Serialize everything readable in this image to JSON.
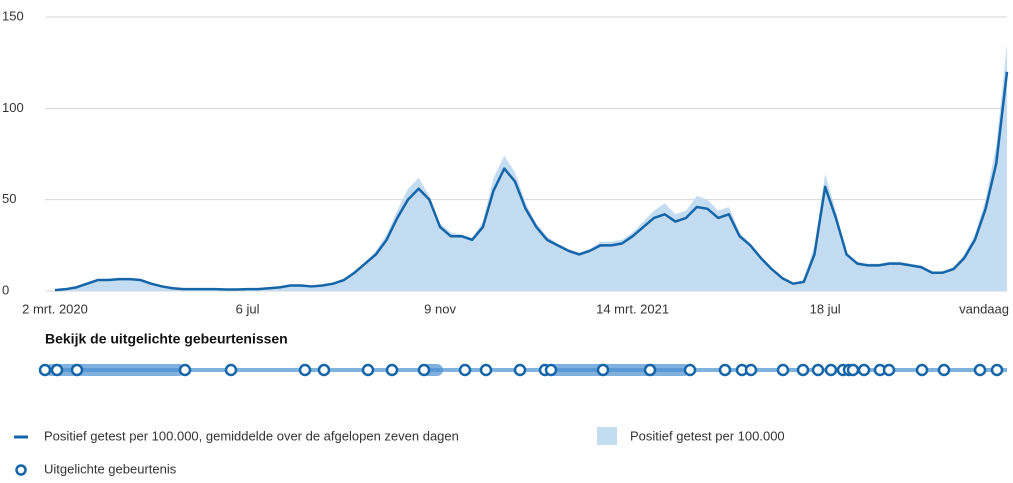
{
  "chart_data": {
    "type": "line",
    "categories": [
      "2 mrt. 2020",
      null,
      null,
      null,
      null,
      null,
      null,
      null,
      null,
      null,
      null,
      null,
      null,
      null,
      null,
      null,
      null,
      null,
      "6 jul",
      null,
      null,
      null,
      null,
      null,
      null,
      null,
      null,
      null,
      null,
      null,
      null,
      null,
      null,
      null,
      null,
      null,
      "9 nov",
      null,
      null,
      null,
      null,
      null,
      null,
      null,
      null,
      null,
      null,
      null,
      null,
      null,
      null,
      null,
      null,
      null,
      "14 mrt. 2021",
      null,
      null,
      null,
      null,
      null,
      null,
      null,
      null,
      null,
      null,
      null,
      null,
      null,
      null,
      null,
      null,
      null,
      "18 jul",
      null,
      null,
      null,
      null,
      null,
      null,
      null,
      null,
      null,
      null,
      null,
      null,
      null,
      null,
      null,
      null,
      "vandaag"
    ],
    "series": [
      {
        "name": "Positief getest per 100.000",
        "kind": "area",
        "color": "#c3dcf1",
        "values": [
          0.6,
          1.2,
          2.5,
          4.5,
          6.5,
          6.8,
          7,
          6.8,
          6.2,
          4.2,
          2.6,
          1.6,
          1.1,
          1,
          1,
          1,
          0.9,
          0.9,
          1.1,
          1.1,
          1.6,
          2.2,
          3.2,
          3.3,
          2.7,
          3.2,
          4.3,
          6.5,
          11,
          16,
          22,
          31,
          44,
          56,
          62,
          52,
          37,
          32,
          31,
          29,
          38,
          62,
          74,
          65,
          48,
          37,
          30,
          26,
          23,
          21,
          23,
          27,
          27,
          28,
          32,
          38,
          44,
          48,
          42,
          44,
          52,
          50,
          44,
          46,
          32,
          26,
          19,
          12,
          7,
          4,
          6,
          25,
          64,
          44,
          21,
          16,
          15,
          15,
          16,
          16,
          15,
          14,
          10,
          11,
          13,
          20,
          31,
          50,
          80,
          135
        ]
      },
      {
        "name": "Positief getest per 100.000, gemiddelde over de afgelopen zeven dagen",
        "kind": "line",
        "color": "#1565a8",
        "values": [
          0.5,
          1,
          2,
          4,
          6,
          6,
          6.5,
          6.5,
          6,
          4,
          2.5,
          1.5,
          1,
          1,
          1,
          1,
          0.8,
          0.8,
          1,
          1,
          1.5,
          2,
          3,
          3,
          2.5,
          3,
          4,
          6,
          10,
          15,
          20,
          28,
          40,
          50,
          56,
          50,
          35,
          30,
          30,
          28,
          35,
          55,
          67,
          60,
          45,
          35,
          28,
          25,
          22,
          20,
          22,
          25,
          25,
          26,
          30,
          35,
          40,
          42,
          38,
          40,
          46,
          45,
          40,
          42,
          30,
          25,
          18,
          12,
          7,
          4,
          5,
          20,
          57,
          40,
          20,
          15,
          14,
          14,
          15,
          15,
          14,
          13,
          10,
          10,
          12,
          18,
          28,
          45,
          70,
          120
        ]
      }
    ],
    "ylim": [
      0,
      150
    ],
    "yticks": [
      0,
      50,
      100,
      150
    ],
    "grid": true,
    "events_title": "Bekijk de uitgelichte gebeurtenissen",
    "events_legend": "Uitgelichte gebeurtenis"
  }
}
